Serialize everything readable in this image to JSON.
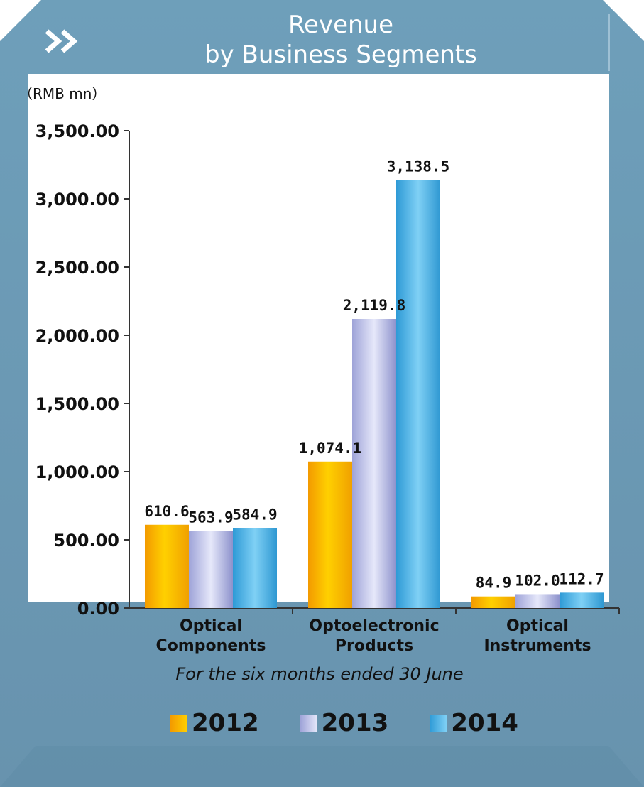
{
  "header": {
    "title_line1": "Revenue",
    "title_line2": "by Business Segments",
    "chevron_icon": "double-chevron-right-icon"
  },
  "colors": {
    "frame": "#6d9cb7",
    "frame_dark": "#5a87a3",
    "series_2012": "#f6a400",
    "series_2013": "#b9bde8",
    "series_2014": "#4fb3e6"
  },
  "chart_data": {
    "type": "bar",
    "unit_label": "（RMB mn）",
    "subtitle": "For the six months ended 30 June",
    "categories": [
      [
        "Optical",
        "Components"
      ],
      [
        "Optoelectronic",
        "Products"
      ],
      [
        "Optical",
        "Instruments"
      ]
    ],
    "series": [
      {
        "name": "2012",
        "values": [
          610.6,
          1074.1,
          84.9
        ],
        "labels": [
          "610.6",
          "1,074.1",
          "84.9"
        ]
      },
      {
        "name": "2013",
        "values": [
          563.9,
          2119.8,
          102.0
        ],
        "labels": [
          "563.9",
          "2,119.8",
          "102.0"
        ]
      },
      {
        "name": "2014",
        "values": [
          584.9,
          3138.5,
          112.7
        ],
        "labels": [
          "584.9",
          "3,138.5",
          "112.7"
        ]
      }
    ],
    "ylim": [
      0,
      3500
    ],
    "yticks": [
      0,
      500,
      1000,
      1500,
      2000,
      2500,
      3000,
      3500
    ],
    "ytick_labels": [
      "0.00",
      "500.00",
      "1,000.00",
      "1,500.00",
      "2,000.00",
      "2,500.00",
      "3,000.00",
      "3,500.00"
    ],
    "grid": false,
    "legend_position": "bottom"
  }
}
